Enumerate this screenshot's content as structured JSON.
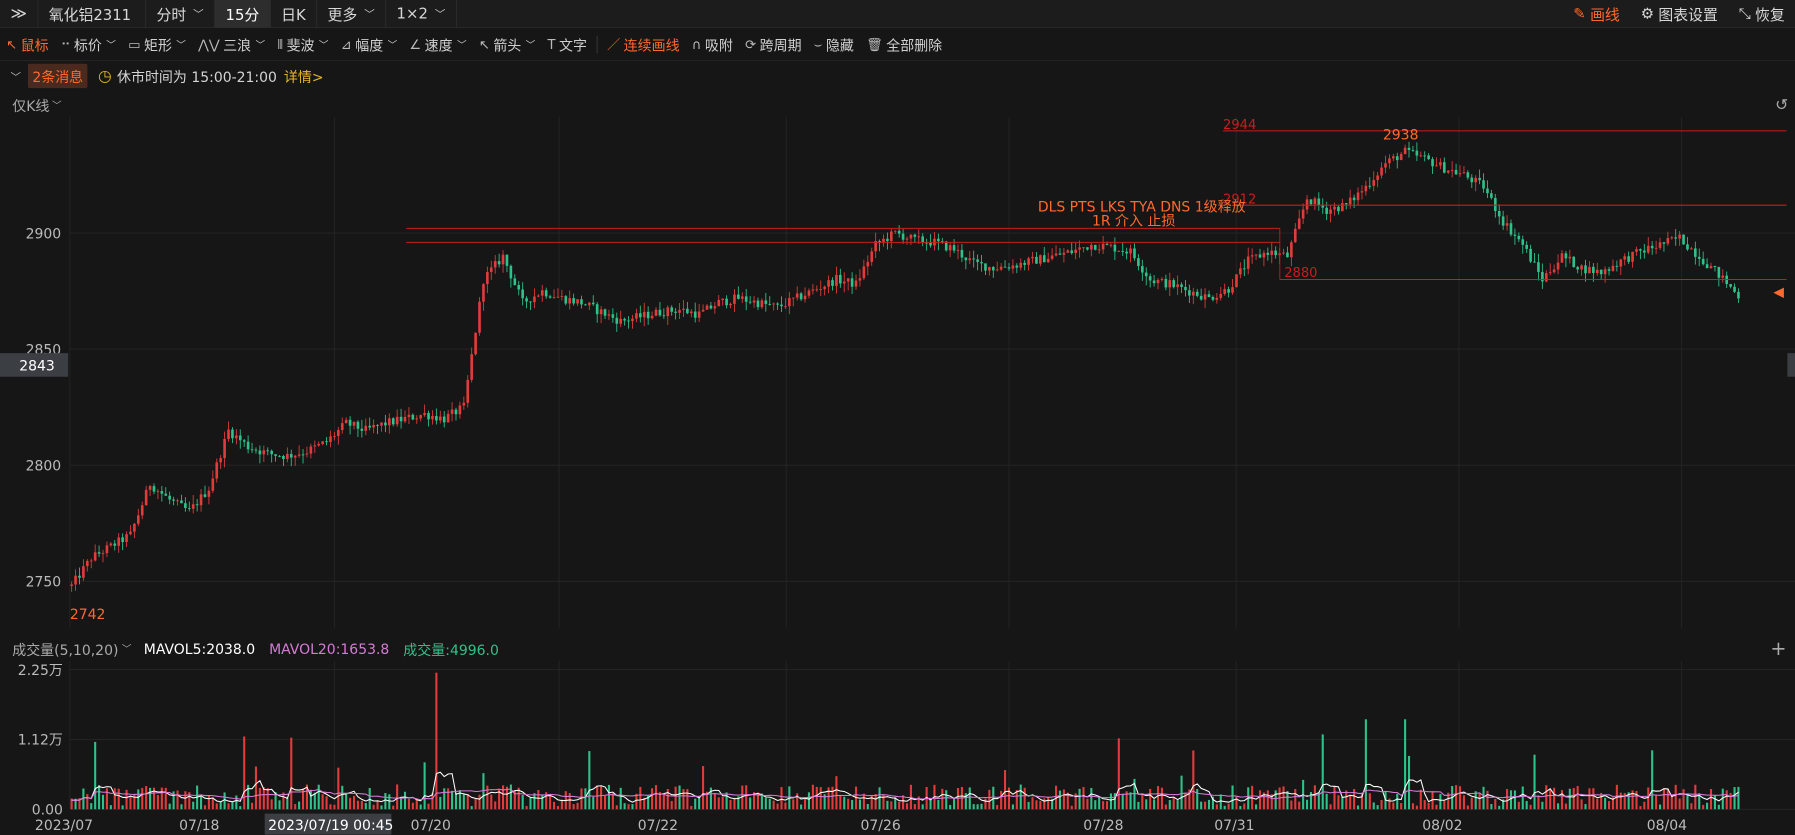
{
  "top": {
    "menu_icon": "double-chevron-right-icon",
    "symbol": "氧化铝2311",
    "tabs": [
      "分时",
      "15分",
      "日K",
      "更多",
      "1×2"
    ],
    "active_tab": "15分",
    "draw": "画线",
    "chart_settings": "图表设置",
    "restore": "恢复"
  },
  "toolbar": {
    "items": [
      {
        "icon": "cursor-icon",
        "label": "鼠标"
      },
      {
        "icon": "price-label-icon",
        "label": "标价"
      },
      {
        "icon": "rectangle-icon",
        "label": "矩形"
      },
      {
        "icon": "three-wave-icon",
        "label": "三浪"
      },
      {
        "icon": "fibonacci-icon",
        "label": "斐波"
      },
      {
        "icon": "amplitude-icon",
        "label": "幅度"
      },
      {
        "icon": "speed-icon",
        "label": "速度"
      },
      {
        "icon": "arrow-icon",
        "label": "箭头"
      },
      {
        "icon": "text-icon",
        "label": "文字"
      },
      {
        "icon": "continuous-line-icon",
        "label": "连续画线"
      },
      {
        "icon": "magnet-icon",
        "label": "吸附"
      },
      {
        "icon": "cross-period-icon",
        "label": "跨周期"
      },
      {
        "icon": "hide-icon",
        "label": "隐藏"
      },
      {
        "icon": "trash-icon",
        "label": "全部删除"
      }
    ]
  },
  "msg": {
    "count": "2条消息",
    "text": "休市时间为 15:00-21:00",
    "detail": "详情>"
  },
  "kline_label": "仅K线",
  "chart_data": {
    "type": "candlestick",
    "symbol": "氧化铝2311",
    "interval": "15分",
    "yticks": [
      2750,
      2800,
      2850,
      2900
    ],
    "ylim": [
      2730,
      2950
    ],
    "current_price_tag": "2843",
    "x_date_labels": [
      "2023/07",
      "07/18",
      "2023/07/19 00:45",
      "07/20",
      "07/22",
      "07/26",
      "07/28",
      "07/31",
      "08/02",
      "08/04"
    ],
    "low_label": "2742",
    "high_label": "2938",
    "h_lines": [
      {
        "label": "2944",
        "value": 2944
      },
      {
        "label": "2912",
        "value": 2912
      },
      {
        "label": "2880",
        "value": 2880
      }
    ],
    "box_lines": [
      2902,
      2896
    ],
    "annotation_line1": "DLS PTS LKS TYA DNS 1级释放",
    "annotation_line2": "1R 介入   止损",
    "path": [
      2748,
      2760,
      2765,
      2770,
      2792,
      2785,
      2780,
      2790,
      2815,
      2808,
      2805,
      2804,
      2806,
      2810,
      2818,
      2815,
      2818,
      2820,
      2822,
      2820,
      2825,
      2880,
      2890,
      2870,
      2875,
      2872,
      2870,
      2866,
      2862,
      2864,
      2866,
      2867,
      2865,
      2870,
      2872,
      2870,
      2868,
      2872,
      2876,
      2880,
      2878,
      2895,
      2900,
      2897,
      2896,
      2893,
      2887,
      2885,
      2886,
      2888,
      2890,
      2892,
      2895,
      2894,
      2892,
      2880,
      2878,
      2875,
      2872,
      2876,
      2888,
      2892,
      2890,
      2915,
      2910,
      2912,
      2920,
      2930,
      2935,
      2932,
      2928,
      2925,
      2920,
      2905,
      2895,
      2880,
      2890,
      2885,
      2883,
      2888,
      2892,
      2895,
      2898,
      2890,
      2882,
      2873
    ],
    "volume": {
      "label": "成交量(5,10,20)",
      "mavol5": "MAVOL5:2038.0",
      "mavol20": "MAVOL20:1653.8",
      "vol": "成交量:4996.0",
      "yticks": [
        "2.25万",
        "1.12万",
        "0.00"
      ],
      "ymax": 22500
    }
  },
  "icons": {
    "draw_icon": "pencil-icon",
    "settings_icon": "gear-icon",
    "restore_icon": "restore-icon",
    "clock": "clock-icon",
    "collapse": "chevron-down-icon",
    "reset": "reset-icon",
    "plus": "plus-icon"
  },
  "colors": {
    "up": "#e03c3c",
    "down": "#2ec28a",
    "accent": "#ff6a2c",
    "line": "#c81e1e",
    "mavol5": "#ffffff",
    "mavol20": "#d67bd6",
    "vol_text": "#2ec28a"
  }
}
